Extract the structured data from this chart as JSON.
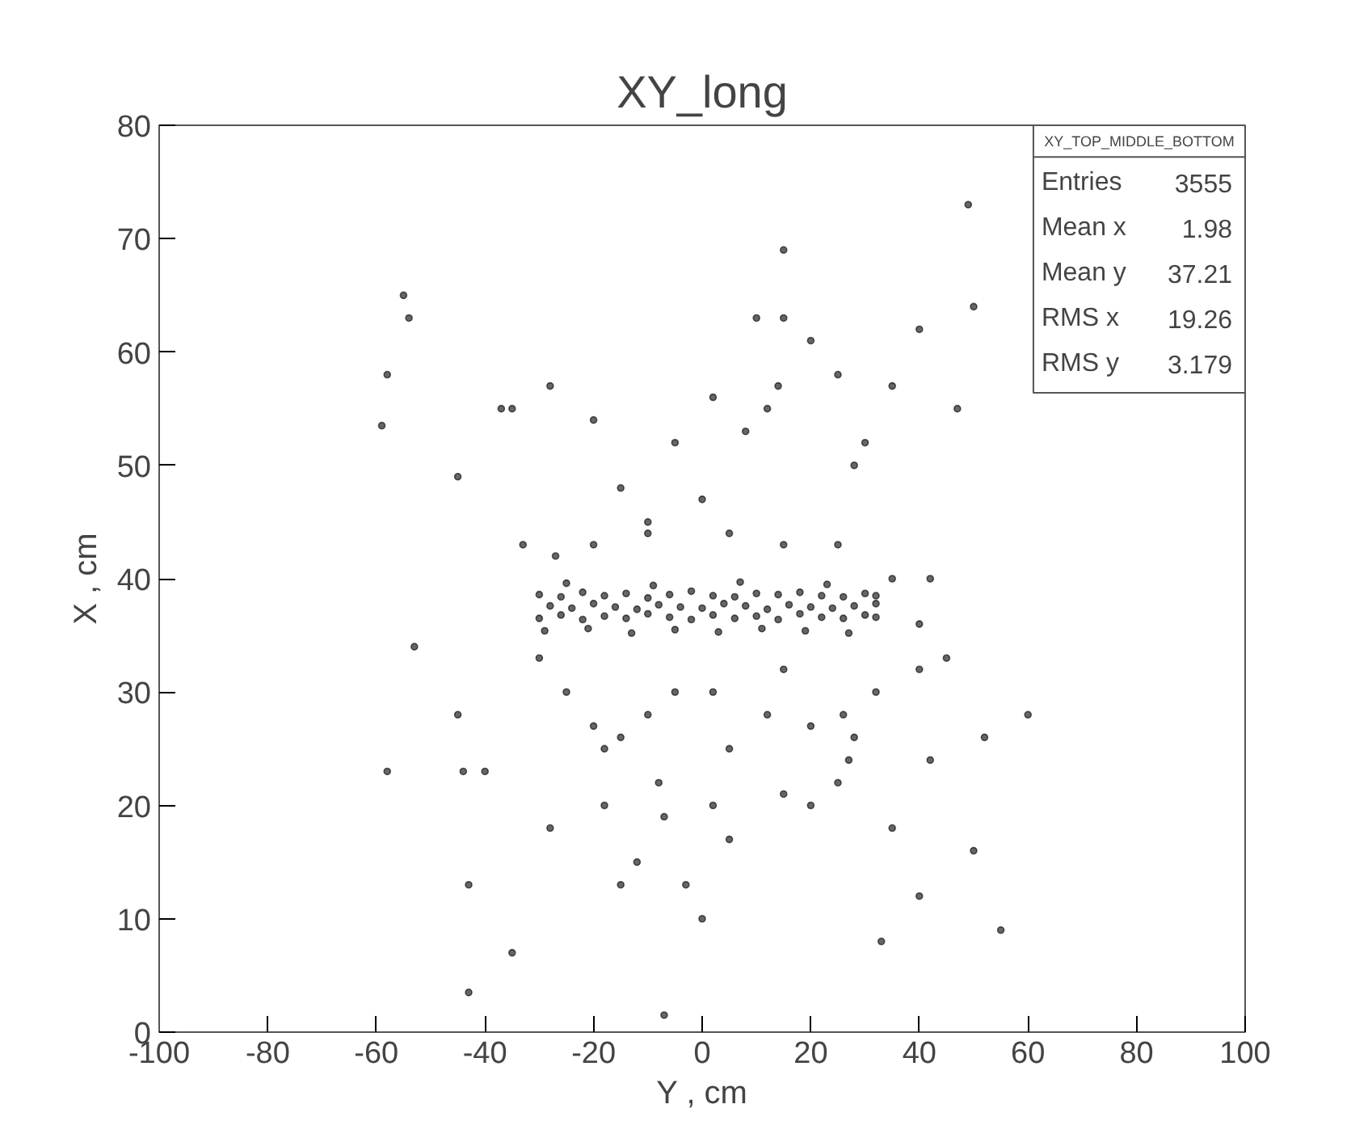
{
  "chart_data": {
    "type": "scatter",
    "title": "XY_long",
    "xlabel": "Y , cm",
    "ylabel": "X , cm",
    "xlim": [
      -100,
      100
    ],
    "ylim": [
      0,
      80
    ],
    "xticks": [
      -100,
      -80,
      -60,
      -40,
      -20,
      0,
      20,
      40,
      60,
      80,
      100
    ],
    "yticks": [
      0,
      10,
      20,
      30,
      40,
      50,
      60,
      70,
      80
    ],
    "grid": false,
    "marker": "circle",
    "annotations": [
      "XY_TOP_MIDDLE_BOTTOM",
      "Entries 3555",
      "Mean x 1.98",
      "Mean y 37.21",
      "RMS x 19.26",
      "RMS y 3.179"
    ],
    "series": [
      {
        "color": "#000000",
        "x": [
          -30,
          -26,
          -22,
          -18,
          -14,
          -10,
          -6,
          -2,
          2,
          6,
          10,
          14,
          18,
          22,
          26,
          30,
          32,
          -28,
          -24,
          -20,
          -16,
          -12,
          -8,
          -4,
          0,
          4,
          8,
          12,
          16,
          20,
          24,
          28,
          32,
          -30,
          -26,
          -22,
          -18,
          -14,
          -10,
          -6,
          -2,
          2,
          6,
          10,
          14,
          18,
          22,
          26,
          30,
          32,
          -29,
          -21,
          -13,
          -5,
          3,
          11,
          19,
          27,
          -25,
          -9,
          7,
          23,
          -55,
          -54,
          -58,
          -59,
          -37,
          -35,
          -45,
          -53,
          -58,
          -45,
          -44,
          -40,
          -43,
          -35,
          -43,
          -28,
          -20,
          -15,
          -10,
          0,
          -5,
          2,
          8,
          12,
          14,
          15,
          15,
          10,
          20,
          25,
          28,
          30,
          40,
          47,
          49,
          50,
          35,
          -30,
          -25,
          -20,
          -18,
          -15,
          -10,
          -8,
          -5,
          2,
          5,
          12,
          15,
          20,
          25,
          27,
          26,
          32,
          28,
          40,
          42,
          35,
          -28,
          -18,
          -15,
          -12,
          -7,
          -3,
          2,
          5,
          15,
          20,
          40,
          50,
          55,
          60,
          52,
          45,
          -7,
          0,
          33,
          -33,
          -27,
          -20,
          -10,
          5,
          15,
          25,
          35,
          42,
          40
        ],
        "values": [
          36.5,
          36.8,
          36.4,
          36.7,
          36.5,
          36.9,
          36.6,
          36.4,
          36.8,
          36.5,
          36.7,
          36.4,
          36.9,
          36.6,
          36.5,
          36.8,
          36.6,
          37.6,
          37.4,
          37.8,
          37.5,
          37.3,
          37.7,
          37.5,
          37.4,
          37.8,
          37.6,
          37.3,
          37.7,
          37.5,
          37.4,
          37.6,
          37.8,
          38.6,
          38.4,
          38.8,
          38.5,
          38.7,
          38.3,
          38.6,
          38.9,
          38.5,
          38.4,
          38.7,
          38.6,
          38.8,
          38.5,
          38.4,
          38.7,
          38.5,
          35.4,
          35.6,
          35.2,
          35.5,
          35.3,
          35.6,
          35.4,
          35.2,
          39.6,
          39.4,
          39.7,
          39.5,
          65,
          63,
          58,
          53.5,
          55,
          55,
          49,
          34,
          23,
          28,
          23,
          23,
          13,
          7,
          3.5,
          57,
          54,
          48,
          45,
          47,
          52,
          56,
          53,
          55,
          57,
          63,
          69,
          63,
          61,
          58,
          50,
          52,
          62,
          55,
          73,
          64,
          57,
          33,
          30,
          27,
          25,
          26,
          28,
          22,
          30,
          30,
          25,
          28,
          32,
          27,
          22,
          24,
          28,
          30,
          26,
          32,
          24,
          18,
          18,
          20,
          13,
          15,
          19,
          13,
          20,
          17,
          21,
          20,
          12,
          16,
          9,
          28,
          26,
          33,
          1.5,
          10,
          8,
          43,
          42,
          43,
          44,
          44,
          43,
          43,
          40,
          40,
          36
        ]
      }
    ]
  }
}
